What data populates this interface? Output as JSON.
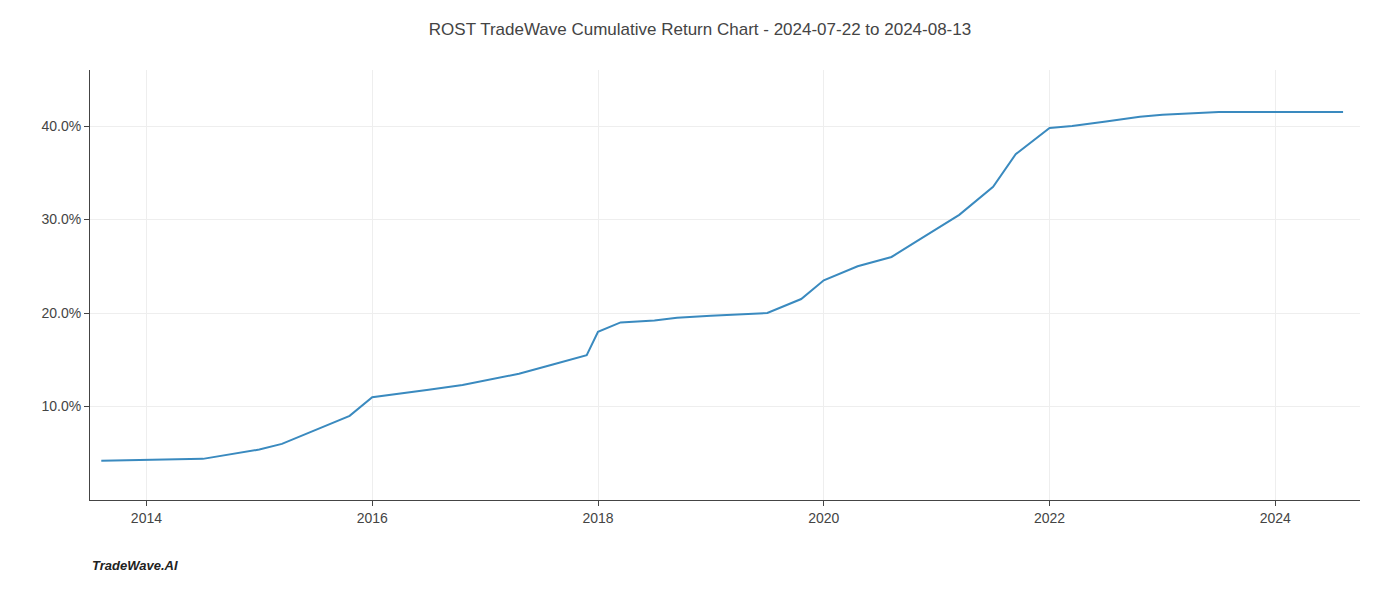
{
  "chart_data": {
    "type": "line",
    "title": "ROST TradeWave Cumulative Return Chart - 2024-07-22 to 2024-08-13",
    "annotations": [
      "TradeWave.AI"
    ],
    "color": "#3a8abf",
    "x": [
      2013.6,
      2014.0,
      2014.5,
      2015.0,
      2015.2,
      2015.5,
      2015.8,
      2016.0,
      2016.2,
      2016.5,
      2016.8,
      2017.0,
      2017.3,
      2017.6,
      2017.9,
      2018.0,
      2018.2,
      2018.5,
      2018.7,
      2019.0,
      2019.3,
      2019.5,
      2019.8,
      2020.0,
      2020.3,
      2020.6,
      2020.8,
      2021.0,
      2021.2,
      2021.5,
      2021.7,
      2022.0,
      2022.2,
      2022.5,
      2022.8,
      2023.0,
      2023.3,
      2023.5,
      2023.7,
      2024.0,
      2024.3,
      2024.6
    ],
    "values": [
      4.2,
      4.3,
      4.4,
      5.4,
      6.0,
      7.5,
      9.0,
      11.0,
      11.3,
      11.8,
      12.3,
      12.8,
      13.5,
      14.5,
      15.5,
      18.0,
      19.0,
      19.2,
      19.5,
      19.7,
      19.9,
      20.0,
      21.5,
      23.5,
      25.0,
      26.0,
      27.5,
      29.0,
      30.5,
      33.5,
      37.0,
      39.8,
      40.0,
      40.5,
      41.0,
      41.2,
      41.4,
      41.5,
      41.5,
      41.5,
      41.5,
      41.5
    ],
    "xlim": [
      2013.5,
      2024.75
    ],
    "ylim": [
      0,
      46
    ],
    "xticks": [
      2014,
      2016,
      2018,
      2020,
      2022,
      2024
    ],
    "yticks": [
      {
        "value": 10.0,
        "label": "10.0%"
      },
      {
        "value": 20.0,
        "label": "20.0%"
      },
      {
        "value": 30.0,
        "label": "30.0%"
      },
      {
        "value": 40.0,
        "label": "40.0%"
      }
    ],
    "grid": true
  }
}
